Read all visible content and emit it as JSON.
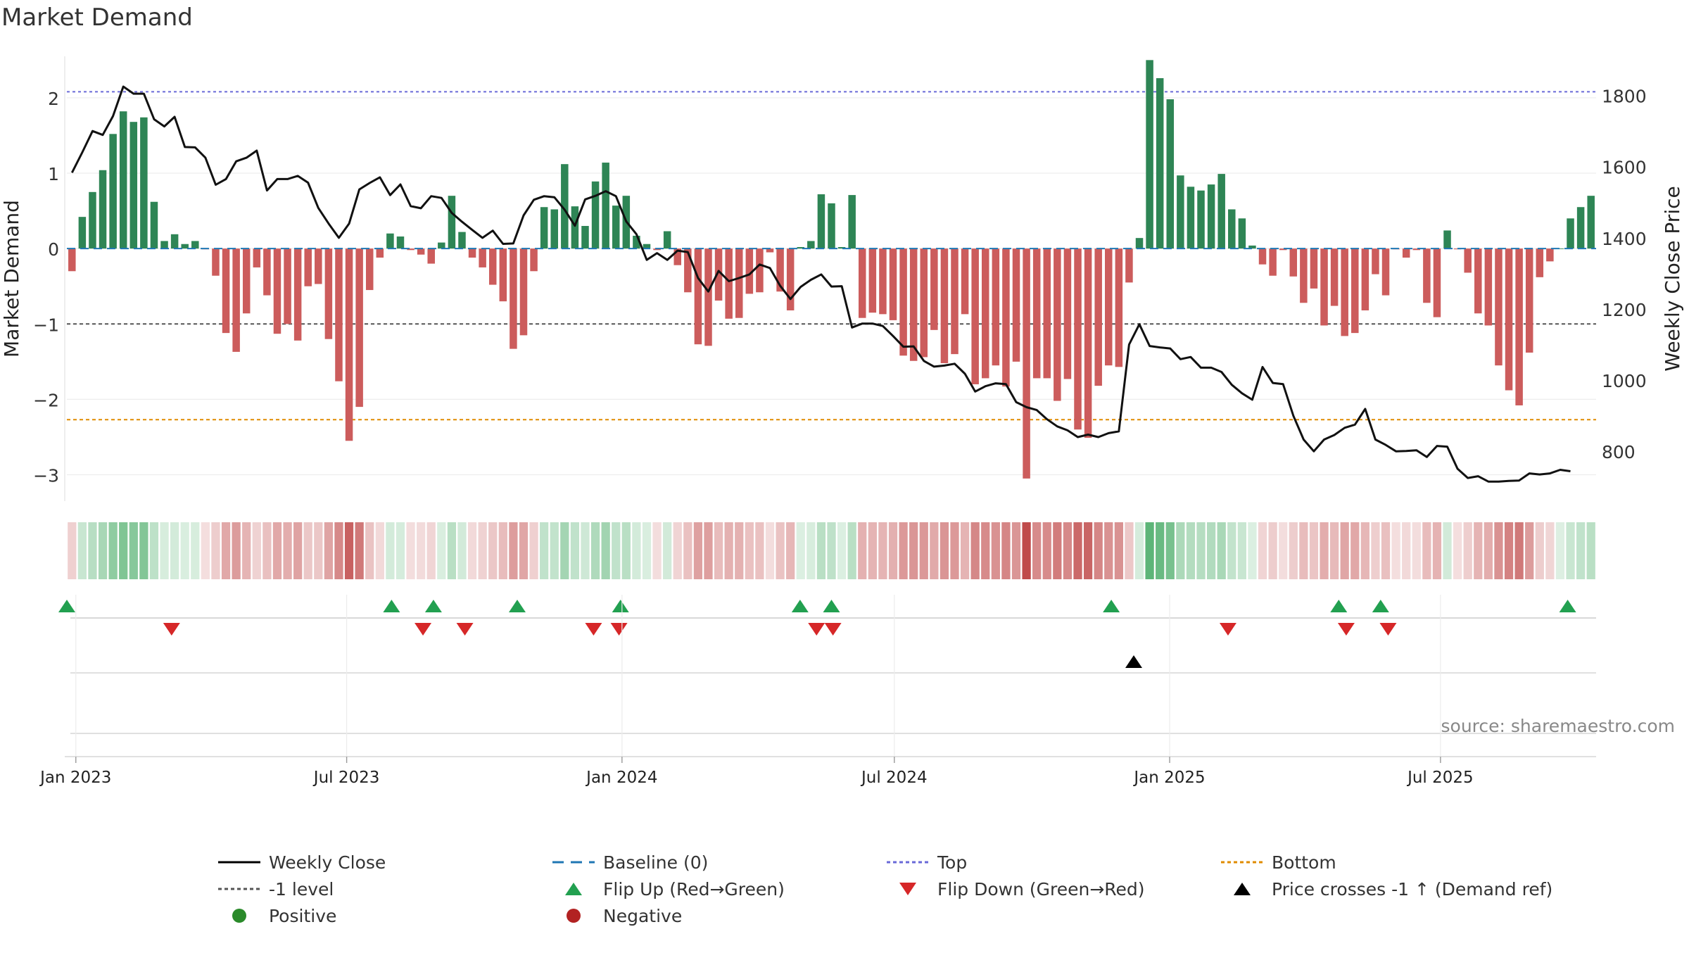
{
  "chart_data": {
    "type": "bar",
    "title": "Market Demand",
    "ylabel": "Market Demand",
    "y2label": "Weekly Close Price",
    "source": "source: sharemaestro.com",
    "ylim": [
      -3.35,
      2.55
    ],
    "y2lim": [
      660,
      1910
    ],
    "yticks": [
      2,
      1,
      0,
      -1,
      -2,
      -3
    ],
    "y2ticks": [
      1800,
      1600,
      1400,
      1200,
      1000,
      800
    ],
    "reference_lines": {
      "top": 2.08,
      "minus_one": -1.0,
      "bottom": -2.27
    },
    "x_start": "2022-12-26",
    "x_end": "2025-10-13",
    "xticks": [
      {
        "date": "2023-01-01",
        "label": "Jan 2023"
      },
      {
        "date": "2023-07-01",
        "label": "Jul 2023"
      },
      {
        "date": "2024-01-01",
        "label": "Jan 2024"
      },
      {
        "date": "2024-07-01",
        "label": "Jul 2024"
      },
      {
        "date": "2025-01-01",
        "label": "Jan 2025"
      },
      {
        "date": "2025-07-01",
        "label": "Jul 2025"
      }
    ],
    "demand": [
      -0.3,
      0.42,
      0.75,
      1.04,
      1.52,
      1.82,
      1.68,
      1.74,
      0.62,
      0.1,
      0.19,
      0.06,
      0.1,
      -0.01,
      -0.36,
      -1.12,
      -1.37,
      -0.86,
      -0.25,
      -0.62,
      -1.13,
      -1.0,
      -1.22,
      -0.5,
      -0.47,
      -1.2,
      -1.76,
      -2.55,
      -2.1,
      -0.55,
      -0.12,
      0.2,
      0.16,
      -0.02,
      -0.08,
      -0.2,
      0.08,
      0.7,
      0.22,
      -0.12,
      -0.25,
      -0.48,
      -0.7,
      -1.33,
      -1.15,
      -0.3,
      0.55,
      0.52,
      1.12,
      0.56,
      0.3,
      0.89,
      1.14,
      0.57,
      0.7,
      0.17,
      0.06,
      -0.02,
      0.23,
      -0.22,
      -0.58,
      -1.27,
      -1.29,
      -0.69,
      -0.93,
      -0.92,
      -0.6,
      -0.58,
      -0.05,
      -0.57,
      -0.82,
      0.02,
      0.1,
      0.72,
      0.6,
      0.02,
      0.71,
      -0.92,
      -0.85,
      -0.87,
      -0.95,
      -1.42,
      -1.49,
      -1.44,
      -1.08,
      -1.52,
      -1.4,
      -0.87,
      -1.8,
      -1.72,
      -1.55,
      -1.83,
      -1.5,
      -3.05,
      -1.72,
      -1.72,
      -2.02,
      -1.73,
      -2.4,
      -2.51,
      -1.82,
      -1.55,
      -1.57,
      -0.45,
      0.14,
      2.5,
      2.26,
      1.98,
      0.97,
      0.82,
      0.77,
      0.85,
      0.99,
      0.52,
      0.4,
      0.04,
      -0.21,
      -0.36,
      -0.02,
      -0.37,
      -0.72,
      -0.53,
      -1.02,
      -0.76,
      -1.16,
      -1.12,
      -0.82,
      -0.34,
      -0.62,
      -0.01,
      -0.12,
      -0.02,
      -0.72,
      -0.91,
      0.24,
      -0.01,
      -0.32,
      -0.86,
      -1.02,
      -1.55,
      -1.88,
      -2.08,
      -1.38,
      -0.38,
      -0.17,
      0.0,
      0.4,
      0.55,
      0.7
    ],
    "close": [
      1583,
      1640,
      1700,
      1689,
      1742,
      1825,
      1805,
      1805,
      1733,
      1713,
      1740,
      1655,
      1654,
      1625,
      1549,
      1565,
      1615,
      1625,
      1645,
      1533,
      1565,
      1565,
      1574,
      1555,
      1484,
      1440,
      1400,
      1440,
      1536,
      1554,
      1570,
      1520,
      1550,
      1489,
      1483,
      1517,
      1512,
      1470,
      1445,
      1422,
      1400,
      1420,
      1383,
      1384,
      1463,
      1507,
      1517,
      1514,
      1479,
      1434,
      1508,
      1518,
      1531,
      1517,
      1446,
      1410,
      1338,
      1357,
      1338,
      1364,
      1360,
      1287,
      1249,
      1307,
      1278,
      1287,
      1297,
      1325,
      1315,
      1265,
      1228,
      1262,
      1282,
      1297,
      1263,
      1264,
      1148,
      1159,
      1159,
      1152,
      1124,
      1094,
      1095,
      1054,
      1038,
      1041,
      1046,
      1018,
      968,
      983,
      991,
      989,
      938,
      924,
      916,
      890,
      870,
      859,
      840,
      847,
      840,
      851,
      856,
      1100,
      1157,
      1096,
      1092,
      1089,
      1059,
      1065,
      1035,
      1035,
      1023,
      987,
      963,
      945,
      1037,
      992,
      989,
      900,
      833,
      800,
      833,
      846,
      866,
      875,
      919,
      833,
      818,
      800,
      801,
      803,
      784,
      815,
      813,
      751,
      725,
      730,
      715,
      715,
      717,
      718,
      738,
      735,
      738,
      748,
      744
    ],
    "flips_up": [
      "2022-12-26",
      "2023-07-31",
      "2023-08-28",
      "2023-10-23",
      "2023-12-31",
      "2024-04-29",
      "2024-05-20",
      "2024-11-23",
      "2025-04-24",
      "2025-05-22",
      "2025-09-24"
    ],
    "flips_down": [
      "2023-03-06",
      "2023-08-21",
      "2023-09-18",
      "2023-12-13",
      "2023-12-30",
      "2024-05-10",
      "2024-05-21",
      "2025-02-09",
      "2025-04-29",
      "2025-05-27"
    ],
    "price_crosses": [
      "2024-12-08"
    ],
    "legend": [
      {
        "label": "Weekly Close",
        "marker": "line",
        "color": "#000000"
      },
      {
        "label": "Baseline (0)",
        "marker": "dash",
        "color": "#1f77b4"
      },
      {
        "label": "Top",
        "marker": "dot",
        "color": "#6a6ad8"
      },
      {
        "label": "Bottom",
        "marker": "dot",
        "color": "#e08c00"
      },
      {
        "label": "-1 level",
        "marker": "dot",
        "color": "#555555"
      },
      {
        "label": "Flip Up (Red→Green)",
        "marker": "triangle-up",
        "color": "#22a050"
      },
      {
        "label": "Flip Down (Green→Red)",
        "marker": "triangle-down",
        "color": "#d62728"
      },
      {
        "label": "Price crosses -1 ↑ (Demand ref)",
        "marker": "triangle-up",
        "color": "#000000"
      },
      {
        "label": "Positive",
        "marker": "circle",
        "color": "#2a8a2a"
      },
      {
        "label": "Negative",
        "marker": "circle",
        "color": "#b22222"
      }
    ],
    "colors": {
      "positive": "#2e8555",
      "negative": "#cc5c5c",
      "close": "#111111",
      "strip_green": "#41a860",
      "strip_red": "#c04a4a"
    }
  }
}
